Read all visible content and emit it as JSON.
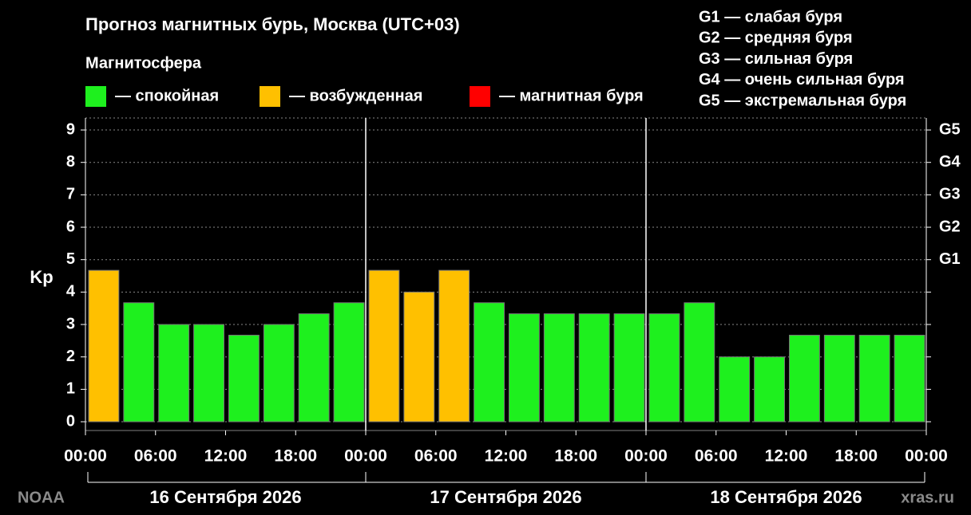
{
  "chart_data": {
    "type": "bar",
    "title": "Прогноз магнитных бурь, Москва (UTC+03)",
    "legend_title": "Магнитосфера",
    "legend": [
      {
        "label": "— спокойная",
        "color": "#1ef01e"
      },
      {
        "label": "— возбужденная",
        "color": "#ffc000"
      },
      {
        "label": "— магнитная буря",
        "color": "#ff0000"
      }
    ],
    "storm_scale": [
      "G1 — слабая буря",
      "G2 — средняя буря",
      "G3 — сильная буря",
      "G4 — очень сильная буря",
      "G5 — экстремальная буря"
    ],
    "y_label": "Kp",
    "x": [
      0,
      3,
      6,
      9,
      12,
      15,
      18,
      21,
      24,
      27,
      30,
      33,
      36,
      39,
      42,
      45,
      48,
      51,
      54,
      57,
      60,
      63,
      66,
      69
    ],
    "values": [
      4.67,
      3.67,
      3,
      3,
      2.67,
      3,
      3.33,
      3.67,
      4.67,
      4,
      4.67,
      3.67,
      3.33,
      3.33,
      3.33,
      3.33,
      3.33,
      3.67,
      2,
      2,
      2.67,
      2.67,
      2.67,
      2.67
    ],
    "colors": [
      "#ffc000",
      "#1ef01e",
      "#1ef01e",
      "#1ef01e",
      "#1ef01e",
      "#1ef01e",
      "#1ef01e",
      "#1ef01e",
      "#ffc000",
      "#ffc000",
      "#ffc000",
      "#1ef01e",
      "#1ef01e",
      "#1ef01e",
      "#1ef01e",
      "#1ef01e",
      "#1ef01e",
      "#1ef01e",
      "#1ef01e",
      "#1ef01e",
      "#1ef01e",
      "#1ef01e",
      "#1ef01e",
      "#1ef01e"
    ],
    "xlim": [
      0,
      72
    ],
    "xticks": [
      {
        "value": 0,
        "label": "00:00"
      },
      {
        "value": 6,
        "label": "06:00"
      },
      {
        "value": 12,
        "label": "12:00"
      },
      {
        "value": 18,
        "label": "18:00"
      },
      {
        "value": 24,
        "label": "00:00"
      },
      {
        "value": 30,
        "label": "06:00"
      },
      {
        "value": 36,
        "label": "12:00"
      },
      {
        "value": 42,
        "label": "18:00"
      },
      {
        "value": 48,
        "label": "00:00"
      },
      {
        "value": 54,
        "label": "06:00"
      },
      {
        "value": 60,
        "label": "12:00"
      },
      {
        "value": 66,
        "label": "18:00"
      },
      {
        "value": 72,
        "label": "00:00"
      }
    ],
    "ylim": [
      -0.27,
      9.37
    ],
    "yticks": [
      0,
      1,
      2,
      3,
      4,
      5,
      6,
      7,
      8,
      9
    ],
    "y2lim": [
      -0.27,
      9.37
    ],
    "y2ticks": [
      {
        "value": 5,
        "label": "G1"
      },
      {
        "value": 6,
        "label": "G2"
      },
      {
        "value": 7,
        "label": "G3"
      },
      {
        "value": 8,
        "label": "G4"
      },
      {
        "value": 9,
        "label": "G5"
      }
    ],
    "days": [
      "16 Сентября 2026",
      "17 Сентября 2026",
      "18 Сентября 2026"
    ],
    "source": "NOAA",
    "site": "xras.ru",
    "grid": true
  }
}
